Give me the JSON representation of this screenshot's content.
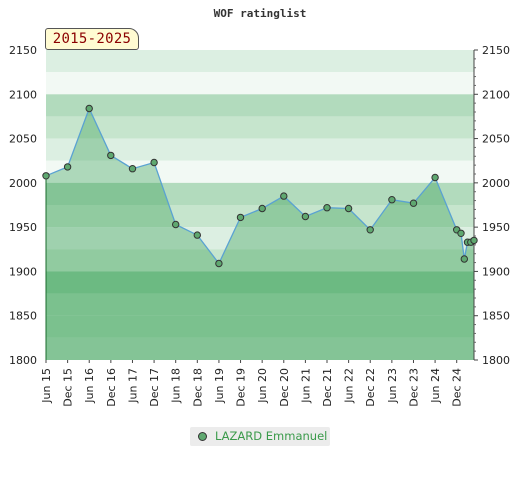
{
  "chart_data": {
    "type": "area",
    "title": "WOF ratinglist",
    "period_label": "2015-2025",
    "ylim": [
      1800,
      2150
    ],
    "yticks": [
      1800,
      1850,
      1900,
      1950,
      2000,
      2050,
      2100,
      2150
    ],
    "x_tick_labels": [
      "Jun 15",
      "Dec 15",
      "Jun 16",
      "Dec 16",
      "Jun 17",
      "Dec 17",
      "Jun 18",
      "Dec 18",
      "Jun 19",
      "Dec 19",
      "Jun 20",
      "Dec 20",
      "Jun 21",
      "Dec 21",
      "Jun 22",
      "Dec 22",
      "Jun 23",
      "Dec 23",
      "Jun 24",
      "Dec 24"
    ],
    "xlim": [
      0,
      19.8
    ],
    "grid": true,
    "legend_position": "bottom-center",
    "series": [
      {
        "name": "LAZARD Emmanuel",
        "color": "#5aa2d2",
        "marker_color": "#5fa870",
        "points": [
          {
            "x": 0,
            "y": 2008
          },
          {
            "x": 1,
            "y": 2018
          },
          {
            "x": 2,
            "y": 2084
          },
          {
            "x": 3,
            "y": 2031
          },
          {
            "x": 4,
            "y": 2016
          },
          {
            "x": 5,
            "y": 2023
          },
          {
            "x": 6,
            "y": 1953
          },
          {
            "x": 7,
            "y": 1941
          },
          {
            "x": 8,
            "y": 1909
          },
          {
            "x": 9,
            "y": 1961
          },
          {
            "x": 10,
            "y": 1971
          },
          {
            "x": 11,
            "y": 1985
          },
          {
            "x": 12,
            "y": 1962
          },
          {
            "x": 13,
            "y": 1972
          },
          {
            "x": 14,
            "y": 1971
          },
          {
            "x": 15,
            "y": 1947
          },
          {
            "x": 16,
            "y": 1981
          },
          {
            "x": 17,
            "y": 1977
          },
          {
            "x": 18,
            "y": 2006
          },
          {
            "x": 19,
            "y": 1947
          },
          {
            "x": 19.2,
            "y": 1943
          },
          {
            "x": 19.35,
            "y": 1914
          },
          {
            "x": 19.5,
            "y": 1933
          },
          {
            "x": 19.65,
            "y": 1933
          },
          {
            "x": 19.8,
            "y": 1935
          }
        ]
      }
    ]
  }
}
